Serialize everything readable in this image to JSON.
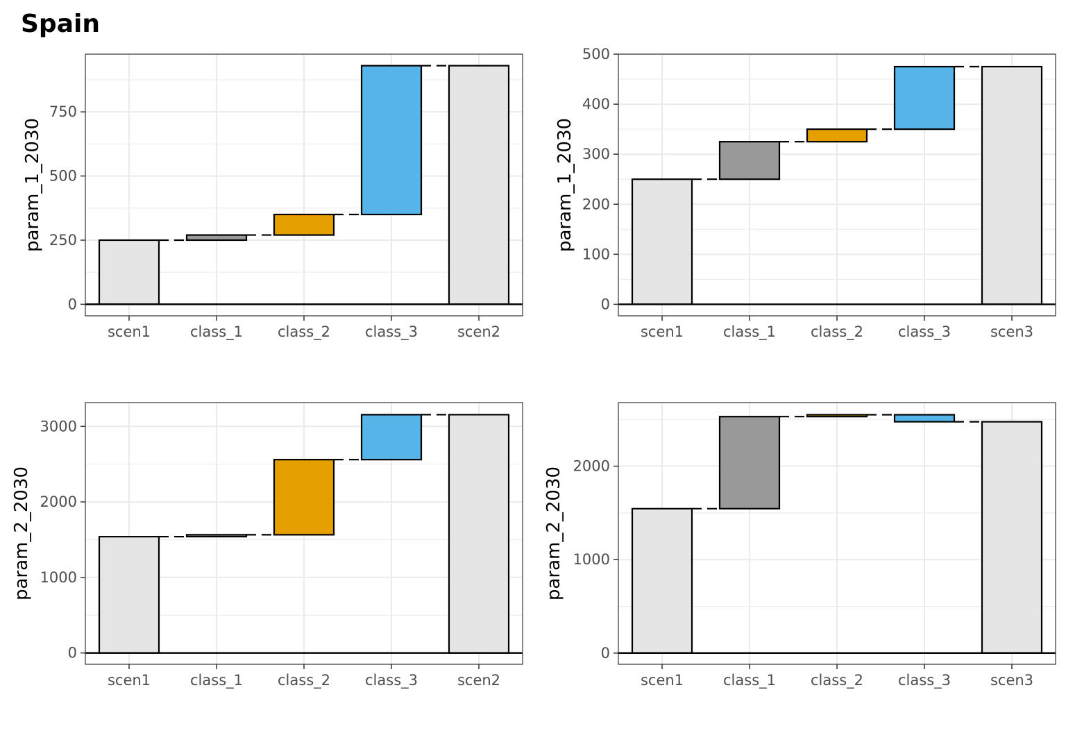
{
  "title": "Spain",
  "colors": {
    "scenario": "#e5e5e5",
    "class_1": "#999999",
    "class_2": "#e69f00",
    "class_3": "#56b4e9",
    "gridline": "#ebebeb",
    "border": "#333333"
  },
  "chart_data": [
    {
      "type": "bar",
      "subtype": "waterfall",
      "ylabel": "param_1_2030",
      "categories": [
        "scen1",
        "class_1",
        "class_2",
        "class_3",
        "scen2"
      ],
      "start": 250,
      "deltas": [
        20,
        80,
        580
      ],
      "end": 930,
      "ylim": [
        -45,
        975
      ],
      "yticks": [
        0,
        250,
        500,
        750
      ],
      "grid": true
    },
    {
      "type": "bar",
      "subtype": "waterfall",
      "ylabel": "param_1_2030",
      "categories": [
        "scen1",
        "class_1",
        "class_2",
        "class_3",
        "scen3"
      ],
      "start": 250,
      "deltas": [
        75,
        25,
        125
      ],
      "end": 475,
      "ylim": [
        -23,
        500
      ],
      "yticks": [
        0,
        100,
        200,
        300,
        400,
        500
      ],
      "grid": true
    },
    {
      "type": "bar",
      "subtype": "waterfall",
      "ylabel": "param_2_2030",
      "categories": [
        "scen1",
        "class_1",
        "class_2",
        "class_3",
        "scen2"
      ],
      "start": 1540,
      "deltas": [
        25,
        995,
        595
      ],
      "end": 3155,
      "ylim": [
        -150,
        3315
      ],
      "yticks": [
        0,
        1000,
        2000,
        3000
      ],
      "grid": true
    },
    {
      "type": "bar",
      "subtype": "waterfall",
      "ylabel": "param_2_2030",
      "categories": [
        "scen1",
        "class_1",
        "class_3",
        "class_3",
        "scen3"
      ],
      "start": 1545,
      "deltas": [
        985,
        20,
        -75
      ],
      "end": 2475,
      "ylim": [
        -120,
        2680
      ],
      "yticks": [
        0,
        1000,
        2000
      ],
      "grid": true
    }
  ]
}
